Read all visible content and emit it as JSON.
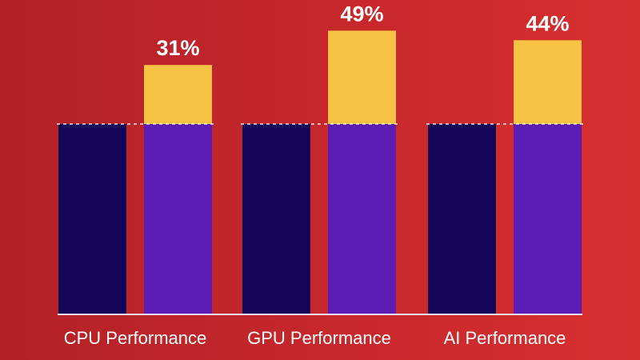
{
  "chart_data": {
    "type": "bar",
    "categories": [
      "CPU Performance",
      "GPU Performance",
      "AI Performance"
    ],
    "baseline_value": 100,
    "series": [
      {
        "values": [
          100,
          100,
          100
        ]
      },
      {
        "values": [
          131,
          149,
          144
        ]
      }
    ],
    "data_labels": [
      "31%",
      "49%",
      "44%"
    ],
    "ylim": [
      0,
      160
    ],
    "grid": false,
    "baseline_line": "dashed",
    "colors": {
      "prior": "#150558",
      "new_base": "#5b1db4",
      "new_gain": "#f6c344",
      "labels": "#ffffff"
    }
  }
}
